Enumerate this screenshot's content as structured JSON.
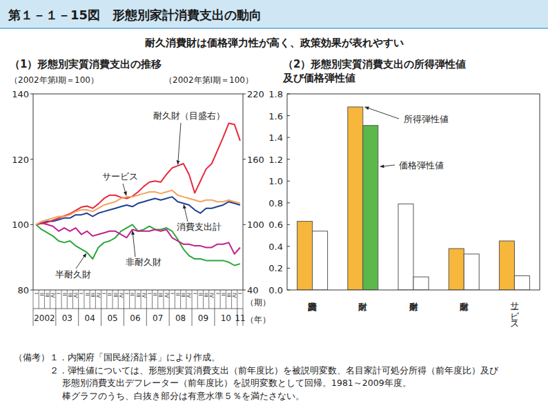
{
  "figure": {
    "title": "第１－１－15図　形態別家計消費支出の動向",
    "subtitle": "耐久消費財は価格弾力性が高く、政策効果が表れやすい",
    "notes_label": "（備考）",
    "notes": [
      "１．内閣府「国民経済計算」により作成。",
      "２．弾性値については、形態別実質消費支出（前年度比）を被説明変数、名目家計可処分所得（前年度比）及び",
      "形態別消費支出デフレーター（前年度比）を説明変数として回帰。1981～2009年度。",
      "棒グラフのうち、白抜き部分は有意水準５％を満たさない。"
    ]
  },
  "chart_data": [
    {
      "type": "line",
      "title": "（1）形態別実質消費支出の推移",
      "ylabel": "（2002年第Ⅰ期＝100）",
      "y2label": "（2002年第Ⅰ期＝100）",
      "xlabel": "（期）",
      "xlabel2": "（年）",
      "categories": [
        "I",
        "II",
        "III",
        "IV",
        "I",
        "II",
        "III",
        "IV",
        "I",
        "II",
        "III",
        "IV",
        "I",
        "II",
        "III",
        "IV",
        "I",
        "II",
        "III",
        "IV",
        "I",
        "II",
        "III",
        "IV",
        "I",
        "II",
        "III",
        "IV",
        "I",
        "II",
        "III",
        "IV",
        "I",
        "II",
        "III",
        "IV",
        "I"
      ],
      "year_labels": [
        "2002",
        "03",
        "04",
        "05",
        "06",
        "07",
        "08",
        "09",
        "10",
        "11"
      ],
      "ylim": [
        80,
        140
      ],
      "yticks": [
        80,
        100,
        120,
        140
      ],
      "y2lim": [
        40,
        220
      ],
      "y2ticks": [
        40,
        100,
        160,
        220
      ],
      "grid": false,
      "series": [
        {
          "name": "消費支出計",
          "color": "#1f3f8f",
          "values": [
            100,
            100.5,
            101,
            101,
            101.5,
            102,
            102,
            103,
            103,
            103.5,
            102.5,
            103.5,
            104,
            104.5,
            105,
            105.5,
            106,
            105.5,
            106.5,
            107,
            107.5,
            108,
            107.5,
            108,
            108.5,
            107,
            106.5,
            106,
            104.5,
            103.5,
            105,
            105,
            105.5,
            106,
            107,
            106.5,
            106
          ]
        },
        {
          "name": "耐久財（目盛右）",
          "color": "#e8283c",
          "axis": "y2",
          "values": [
            100,
            101,
            102,
            104,
            106,
            108,
            110,
            113,
            116,
            117,
            115,
            119,
            124,
            127,
            127,
            125,
            124,
            126,
            130,
            135,
            139,
            140,
            139,
            146,
            152,
            154,
            156,
            146,
            129,
            140,
            151,
            156,
            168,
            180,
            193,
            192,
            177
          ]
        },
        {
          "name": "半耐久財",
          "color": "#2ca53a",
          "values": [
            100,
            98.5,
            97.5,
            96.5,
            95,
            94.5,
            95,
            93.5,
            92.5,
            91.5,
            89.5,
            93,
            94.5,
            95,
            96,
            98,
            99,
            100,
            98,
            98.5,
            99.5,
            98.5,
            98.5,
            99,
            98,
            95.5,
            92.5,
            90.5,
            89.5,
            89.5,
            89,
            89,
            89,
            89,
            88.5,
            87.5,
            88
          ]
        },
        {
          "name": "非耐久財",
          "color": "#c0208c",
          "values": [
            100,
            100.5,
            100,
            99.5,
            98,
            99,
            98,
            99,
            97,
            98,
            96.5,
            97,
            97.5,
            98,
            98,
            97,
            96,
            98.5,
            98,
            98,
            98,
            98.5,
            98,
            98.5,
            96,
            95,
            94,
            94,
            93.5,
            93.5,
            93,
            93,
            94,
            94,
            94.5,
            91,
            93
          ]
        },
        {
          "name": "サービス",
          "color": "#f5a25d",
          "values": [
            100,
            101,
            101.5,
            102,
            102.5,
            102.5,
            103,
            104,
            104.5,
            104.5,
            104,
            105,
            106,
            106.5,
            107,
            108,
            108.5,
            108.5,
            109,
            109.5,
            110,
            110,
            109.5,
            110,
            110.5,
            109,
            108.5,
            108,
            107.5,
            107,
            107.5,
            107.5,
            107,
            107,
            107.5,
            107,
            106.5
          ]
        }
      ]
    },
    {
      "type": "bar",
      "title": [
        "（2）形態別実質消費支出の所得弾性値",
        "及び価格弾性値"
      ],
      "categories": [
        "消費支出計",
        "耐久財",
        "半耐久財",
        "非耐久財",
        "サービス"
      ],
      "ylim": [
        0,
        1.8
      ],
      "yticks": [
        {
          "value": 0,
          "label": "0.0"
        },
        0.2,
        0.4,
        0.6,
        0.8,
        {
          "value": 1,
          "label": "1.0"
        },
        1.2,
        1.4,
        1.6,
        1.8
      ],
      "grid": false,
      "series": [
        {
          "name": "所得弾性値",
          "colors": [
            "#f6b73c",
            "#f6b73c",
            "#ffffff",
            "#f6b73c",
            "#f6b73c"
          ],
          "values": [
            0.63,
            1.68,
            0.79,
            0.38,
            0.45
          ]
        },
        {
          "name": "価格弾性値",
          "colors": [
            "#ffffff",
            "#5cb84a",
            "#ffffff",
            "#ffffff",
            "#ffffff"
          ],
          "values": [
            0.54,
            1.51,
            0.12,
            0.33,
            0.13
          ]
        }
      ]
    }
  ]
}
